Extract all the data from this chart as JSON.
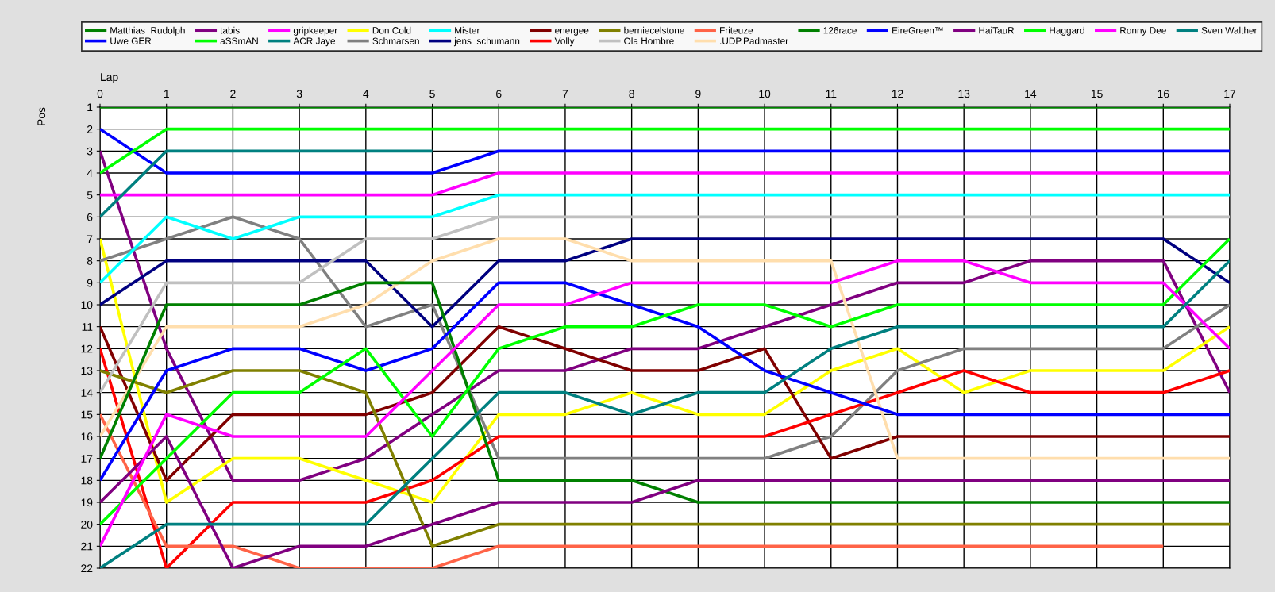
{
  "chart_data": {
    "type": "line",
    "xlabel": "Lap",
    "ylabel": "Pos",
    "x": [
      0,
      1,
      2,
      3,
      4,
      5,
      6,
      7,
      8,
      9,
      10,
      11,
      12,
      13,
      14,
      15,
      16,
      17
    ],
    "xlim": [
      0,
      17
    ],
    "xticks": [
      0,
      1,
      2,
      3,
      4,
      5,
      6,
      7,
      8,
      9,
      10,
      11,
      12,
      13,
      14,
      15,
      16,
      17
    ],
    "ylim": [
      22,
      1
    ],
    "yticks": [
      1,
      2,
      3,
      4,
      5,
      6,
      7,
      8,
      9,
      10,
      11,
      12,
      13,
      14,
      15,
      16,
      17,
      18,
      19,
      20,
      21,
      22
    ],
    "grid": true,
    "legend": "top",
    "marker": "none",
    "line_style": "solid",
    "series": [
      {
        "name": "Matthias  Rudolph",
        "color": "#008000",
        "values": [
          1,
          1,
          1,
          1,
          1,
          1,
          1,
          1,
          1,
          1,
          1,
          1,
          1,
          1,
          1,
          1,
          1,
          1
        ]
      },
      {
        "name": "Uwe GER",
        "color": "#0000ff",
        "values": [
          2,
          4,
          4,
          4,
          4,
          4,
          3,
          3,
          3,
          3,
          3,
          3,
          3,
          3,
          3,
          3,
          3,
          3
        ]
      },
      {
        "name": "tabis",
        "color": "#800080",
        "values": [
          3,
          12,
          18,
          18,
          17,
          15,
          13,
          13,
          12,
          12,
          11,
          10,
          9,
          9,
          8,
          8,
          8,
          14
        ]
      },
      {
        "name": "aSSmAN",
        "color": "#00ff00",
        "values": [
          4,
          2,
          2,
          2,
          2,
          2,
          2,
          2,
          2,
          2,
          2,
          2,
          2,
          2,
          2,
          2,
          2,
          2
        ]
      },
      {
        "name": "gripkeeper",
        "color": "#ff00ff",
        "values": [
          5,
          5,
          5,
          5,
          5,
          5,
          4,
          4,
          4,
          4,
          4,
          4,
          4,
          4,
          4,
          4,
          4,
          4
        ]
      },
      {
        "name": "ACR Jaye",
        "color": "#008080",
        "values": [
          6,
          3,
          3,
          3,
          3,
          3,
          null,
          null,
          null,
          null,
          null,
          null,
          null,
          null,
          null,
          null,
          null,
          null
        ]
      },
      {
        "name": "Don Cold",
        "color": "#ffff00",
        "values": [
          7,
          19,
          17,
          17,
          18,
          19,
          15,
          15,
          14,
          15,
          15,
          13,
          12,
          14,
          13,
          13,
          13,
          11
        ]
      },
      {
        "name": "Schmarsen",
        "color": "#808080",
        "values": [
          8,
          7,
          6,
          7,
          11,
          10,
          17,
          17,
          17,
          17,
          17,
          16,
          13,
          12,
          12,
          12,
          12,
          10
        ]
      },
      {
        "name": "Mister",
        "color": "#00ffff",
        "values": [
          9,
          6,
          7,
          6,
          6,
          6,
          5,
          5,
          5,
          5,
          5,
          5,
          5,
          5,
          5,
          5,
          5,
          5
        ]
      },
      {
        "name": "jens  schumann",
        "color": "#000080",
        "values": [
          10,
          8,
          8,
          8,
          8,
          11,
          8,
          8,
          7,
          7,
          7,
          7,
          7,
          7,
          7,
          7,
          7,
          9
        ]
      },
      {
        "name": "energee",
        "color": "#800000",
        "values": [
          11,
          18,
          15,
          15,
          15,
          14,
          11,
          12,
          13,
          13,
          12,
          17,
          16,
          16,
          16,
          16,
          16,
          16
        ]
      },
      {
        "name": "Volly",
        "color": "#ff0000",
        "values": [
          12,
          22,
          19,
          19,
          19,
          18,
          16,
          16,
          16,
          16,
          16,
          15,
          14,
          13,
          14,
          14,
          14,
          13
        ]
      },
      {
        "name": "berniecelstone",
        "color": "#808000",
        "values": [
          13,
          14,
          13,
          13,
          14,
          21,
          20,
          20,
          20,
          20,
          20,
          20,
          20,
          20,
          20,
          20,
          20,
          20
        ]
      },
      {
        "name": "Ola Hombre",
        "color": "#c0c0c0",
        "values": [
          14,
          9,
          9,
          9,
          7,
          7,
          6,
          6,
          6,
          6,
          6,
          6,
          6,
          6,
          6,
          6,
          6,
          6
        ]
      },
      {
        "name": "Friteuze",
        "color": "#ff6347",
        "values": [
          15,
          21,
          21,
          22,
          22,
          22,
          21,
          21,
          21,
          21,
          21,
          21,
          21,
          21,
          21,
          21,
          21,
          null
        ]
      },
      {
        "name": ".UDP.Padmaster",
        "color": "#ffdead",
        "values": [
          16,
          11,
          11,
          11,
          10,
          8,
          7,
          7,
          8,
          8,
          8,
          8,
          17,
          17,
          17,
          17,
          17,
          17
        ]
      },
      {
        "name": "126race",
        "color": "#008000",
        "values": [
          17,
          10,
          10,
          10,
          9,
          9,
          18,
          18,
          18,
          19,
          19,
          19,
          19,
          19,
          19,
          19,
          19,
          19
        ]
      },
      {
        "name": "EireGreen™",
        "color": "#0000ff",
        "values": [
          18,
          13,
          12,
          12,
          13,
          12,
          9,
          9,
          10,
          11,
          13,
          14,
          15,
          15,
          15,
          15,
          15,
          15
        ]
      },
      {
        "name": "HaiTauR",
        "color": "#800080",
        "values": [
          19,
          16,
          22,
          21,
          21,
          20,
          19,
          19,
          19,
          18,
          18,
          18,
          18,
          18,
          18,
          18,
          18,
          18
        ]
      },
      {
        "name": "Haggard",
        "color": "#00ff00",
        "values": [
          20,
          17,
          14,
          14,
          12,
          16,
          12,
          11,
          11,
          10,
          10,
          11,
          10,
          10,
          10,
          10,
          10,
          7
        ]
      },
      {
        "name": "Ronny Dee",
        "color": "#ff00ff",
        "values": [
          21,
          15,
          16,
          16,
          16,
          13,
          10,
          10,
          9,
          9,
          9,
          9,
          8,
          8,
          9,
          9,
          9,
          12
        ]
      },
      {
        "name": "Sven Walther",
        "color": "#008080",
        "values": [
          22,
          20,
          20,
          20,
          20,
          17,
          14,
          14,
          15,
          14,
          14,
          12,
          11,
          11,
          11,
          11,
          11,
          8
        ]
      }
    ]
  }
}
